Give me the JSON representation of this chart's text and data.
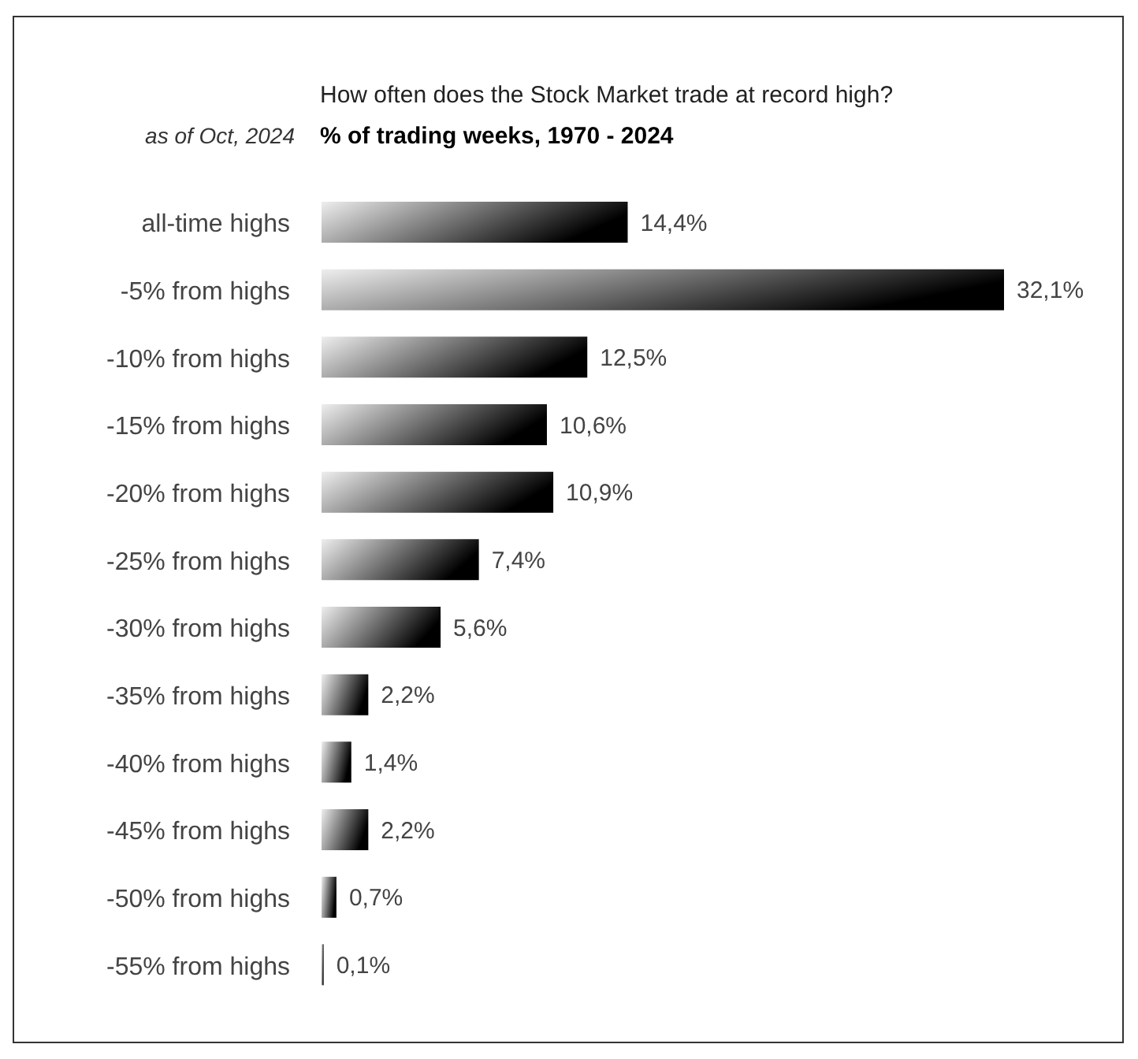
{
  "chart_data": {
    "type": "bar",
    "orientation": "horizontal",
    "title": "How often does the Stock Market trade at record high?",
    "subtitle": "% of trading weeks, 1970 - 2024",
    "annotations": [
      "as of Oct, 2024"
    ],
    "categories": [
      "all-time highs",
      "-5% from highs",
      "-10% from highs",
      "-15% from highs",
      "-20% from highs",
      "-25% from highs",
      "-30% from highs",
      "-35% from highs",
      "-40% from highs",
      "-45% from highs",
      "-50% from highs",
      "-55% from highs"
    ],
    "values": [
      14.4,
      32.1,
      12.5,
      10.6,
      10.9,
      7.4,
      5.6,
      2.2,
      1.4,
      2.2,
      0.7,
      0.1
    ],
    "value_labels": [
      "14,4%",
      "32,1%",
      "12,5%",
      "10,6%",
      "10,9%",
      "7,4%",
      "5,6%",
      "2,2%",
      "1,4%",
      "2,2%",
      "0,7%",
      "0,1%"
    ],
    "color": "#000000",
    "grid": false,
    "legend": false
  }
}
